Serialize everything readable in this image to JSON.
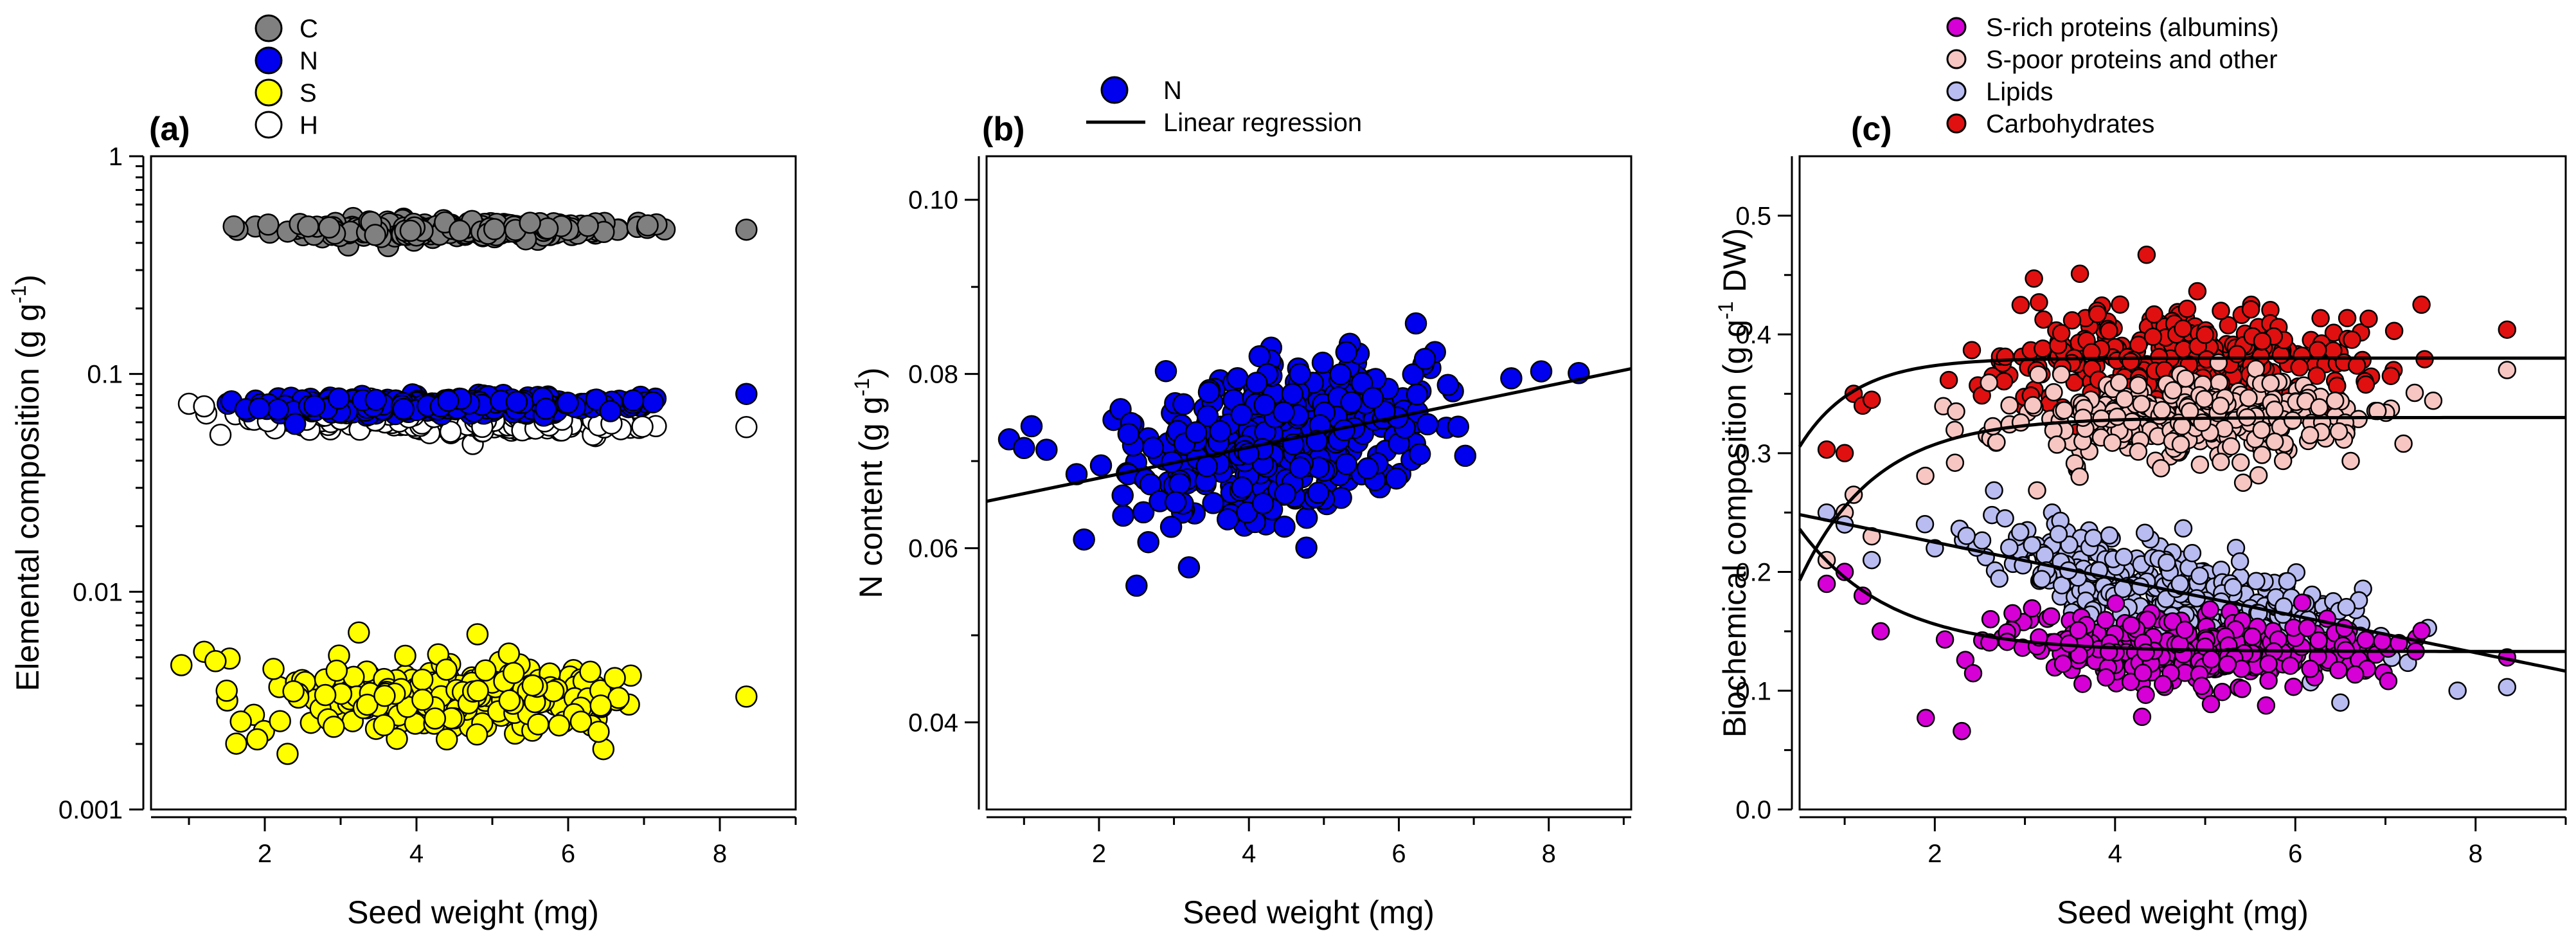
{
  "colors": {
    "C": "#808080",
    "N": "#0000ee",
    "S": "#ffff00",
    "H": "#ffffff",
    "srich": "#d600d6",
    "spoor": "#f7c6c2",
    "lipids": "#b8bcf0",
    "carb": "#e01010"
  },
  "chart_data": [
    {
      "id": "a",
      "panel_label": "(a)",
      "type": "scatter",
      "xlabel": "Seed weight (mg)",
      "ylabel_main": "Elemental composition (g g",
      "ylabel_sup": "-1",
      "ylabel_end": ")",
      "yscale": "log",
      "xlim": [
        0.5,
        9
      ],
      "ylim": [
        0.001,
        1
      ],
      "x_ticks": [
        "2",
        "4",
        "6",
        "8"
      ],
      "y_ticks": [
        "0.001",
        "0.01",
        "0.1",
        "1"
      ],
      "legend": [
        {
          "key": "C",
          "label": "C"
        },
        {
          "key": "N",
          "label": "N"
        },
        {
          "key": "S",
          "label": "S"
        },
        {
          "key": "H",
          "label": "H"
        }
      ],
      "series": [
        {
          "name": "C",
          "color_key": "C",
          "x_range": [
            0.9,
            7.9
          ],
          "y_level": 0.46,
          "spread_log": 0.018,
          "n": 300,
          "extra": [
            [
              8.35,
              0.46
            ]
          ]
        },
        {
          "name": "H",
          "color_key": "H",
          "x_range": [
            0.9,
            7.9
          ],
          "y_level": 0.062,
          "y_slope": -0.028,
          "spread_log": 0.03,
          "n": 300,
          "extra": [
            [
              8.35,
              0.057
            ],
            [
              1.0,
              0.073
            ],
            [
              1.2,
              0.071
            ]
          ]
        },
        {
          "name": "N",
          "color_key": "N",
          "x_range": [
            0.9,
            7.9
          ],
          "y_level": 0.072,
          "y_slope": 0.012,
          "spread_log": 0.02,
          "n": 300,
          "extra": [
            [
              8.35,
              0.081
            ],
            [
              2.4,
              0.059
            ]
          ]
        },
        {
          "name": "S",
          "color_key": "S",
          "x_range": [
            0.9,
            7.9
          ],
          "y_level": 0.0033,
          "spread_log": 0.075,
          "n": 300,
          "extra": [
            [
              0.9,
              0.0046
            ],
            [
              1.2,
              0.0053
            ],
            [
              1.35,
              0.0048
            ],
            [
              1.9,
              0.0021
            ],
            [
              2.3,
              0.0018
            ],
            [
              4.4,
              0.0021
            ],
            [
              8.35,
              0.0033
            ]
          ]
        }
      ]
    },
    {
      "id": "b",
      "panel_label": "(b)",
      "type": "scatter",
      "xlabel": "Seed weight (mg)",
      "ylabel_main": "N content (g g",
      "ylabel_sup": "-1",
      "ylabel_end": ")",
      "xlim": [
        0.5,
        9.1
      ],
      "ylim": [
        0.03,
        0.105
      ],
      "x_ticks": [
        "2",
        "4",
        "6",
        "8"
      ],
      "y_ticks": [
        "0.04",
        "0.06",
        "0.08",
        "0.10"
      ],
      "legend": [
        {
          "kind": "marker",
          "key": "N",
          "label": "N"
        },
        {
          "kind": "line",
          "label": "Linear regression"
        }
      ],
      "regression": {
        "intercept": 0.0645,
        "slope": 0.00177
      },
      "series": [
        {
          "name": "N",
          "color_key": "N",
          "x_range": [
            1.5,
            7.4
          ],
          "noise": 0.0043,
          "n": 380,
          "extra": [
            [
              0.8,
              0.0725
            ],
            [
              1.0,
              0.0715
            ],
            [
              1.1,
              0.074
            ],
            [
              1.3,
              0.0713
            ],
            [
              1.7,
              0.0685
            ],
            [
              1.8,
              0.061
            ],
            [
              2.5,
              0.0557
            ],
            [
              3.2,
              0.0578
            ],
            [
              5.3,
              0.0825
            ],
            [
              7.5,
              0.0795
            ],
            [
              7.9,
              0.0803
            ],
            [
              8.4,
              0.0801
            ]
          ]
        }
      ]
    },
    {
      "id": "c",
      "panel_label": "(c)",
      "type": "scatter",
      "xlabel": "Seed weight (mg)",
      "ylabel_main": "Biochemical composition (g g",
      "ylabel_sup": "-1",
      "ylabel_end": " DW)",
      "xlim": [
        0.5,
        9
      ],
      "ylim": [
        0.0,
        0.55
      ],
      "x_ticks": [
        "2",
        "4",
        "6",
        "8"
      ],
      "y_ticks": [
        "0.0",
        "0.1",
        "0.2",
        "0.3",
        "0.4",
        "0.5"
      ],
      "legend": [
        {
          "key": "srich",
          "label": "S-rich proteins (albumins)"
        },
        {
          "key": "spoor",
          "label": "S-poor proteins and other"
        },
        {
          "key": "lipids",
          "label": "Lipids"
        },
        {
          "key": "carb",
          "label": "Carbohydrates"
        }
      ],
      "fit_lines": [
        {
          "series": "Carbohydrates",
          "form": "exp_rise",
          "a": 0.38,
          "b": 0.17,
          "k": 1.65
        },
        {
          "series": "S-poor proteins and other",
          "form": "exp_rise",
          "a": 0.33,
          "b": 0.25,
          "k": 1.2
        },
        {
          "series": "Lipids",
          "form": "linear",
          "intercept": 0.256,
          "slope": -0.0155
        },
        {
          "series": "S-rich proteins (albumins)",
          "form": "exp_decay",
          "a": 0.133,
          "b": 0.17,
          "k": 1.0
        }
      ],
      "series": [
        {
          "name": "Carbohydrates",
          "color_key": "carb",
          "x_range": [
            1.6,
            7.9
          ],
          "fit_index": 0,
          "noise": 0.022,
          "n": 320,
          "extra": [
            [
              0.8,
              0.303
            ],
            [
              1.0,
              0.3
            ],
            [
              1.1,
              0.35
            ],
            [
              1.2,
              0.34
            ],
            [
              1.3,
              0.345
            ],
            [
              4.35,
              0.467
            ],
            [
              3.1,
              0.447
            ],
            [
              7.4,
              0.425
            ],
            [
              8.35,
              0.404
            ]
          ]
        },
        {
          "name": "S-poor proteins and other",
          "color_key": "spoor",
          "x_range": [
            1.6,
            7.9
          ],
          "fit_index": 1,
          "noise": 0.018,
          "n": 320,
          "extra": [
            [
              0.8,
              0.21
            ],
            [
              1.0,
              0.25
            ],
            [
              1.1,
              0.265
            ],
            [
              1.3,
              0.23
            ],
            [
              8.35,
              0.37
            ],
            [
              7.2,
              0.308
            ]
          ]
        },
        {
          "name": "Lipids",
          "color_key": "lipids",
          "x_range": [
            1.6,
            7.9
          ],
          "fit_index": 2,
          "noise": 0.019,
          "n": 360,
          "extra": [
            [
              0.8,
              0.25
            ],
            [
              1.0,
              0.24
            ],
            [
              1.3,
              0.21
            ],
            [
              7.8,
              0.1
            ],
            [
              8.35,
              0.103
            ],
            [
              6.5,
              0.09
            ]
          ]
        },
        {
          "name": "S-rich proteins (albumins)",
          "color_key": "srich",
          "x_range": [
            1.6,
            7.9
          ],
          "fit_index": 3,
          "noise": 0.014,
          "n": 320,
          "extra": [
            [
              0.8,
              0.19
            ],
            [
              1.0,
              0.2
            ],
            [
              1.2,
              0.18
            ],
            [
              1.4,
              0.15
            ],
            [
              1.9,
              0.077
            ],
            [
              2.3,
              0.066
            ],
            [
              4.3,
              0.078
            ],
            [
              8.35,
              0.128
            ]
          ]
        }
      ]
    }
  ]
}
